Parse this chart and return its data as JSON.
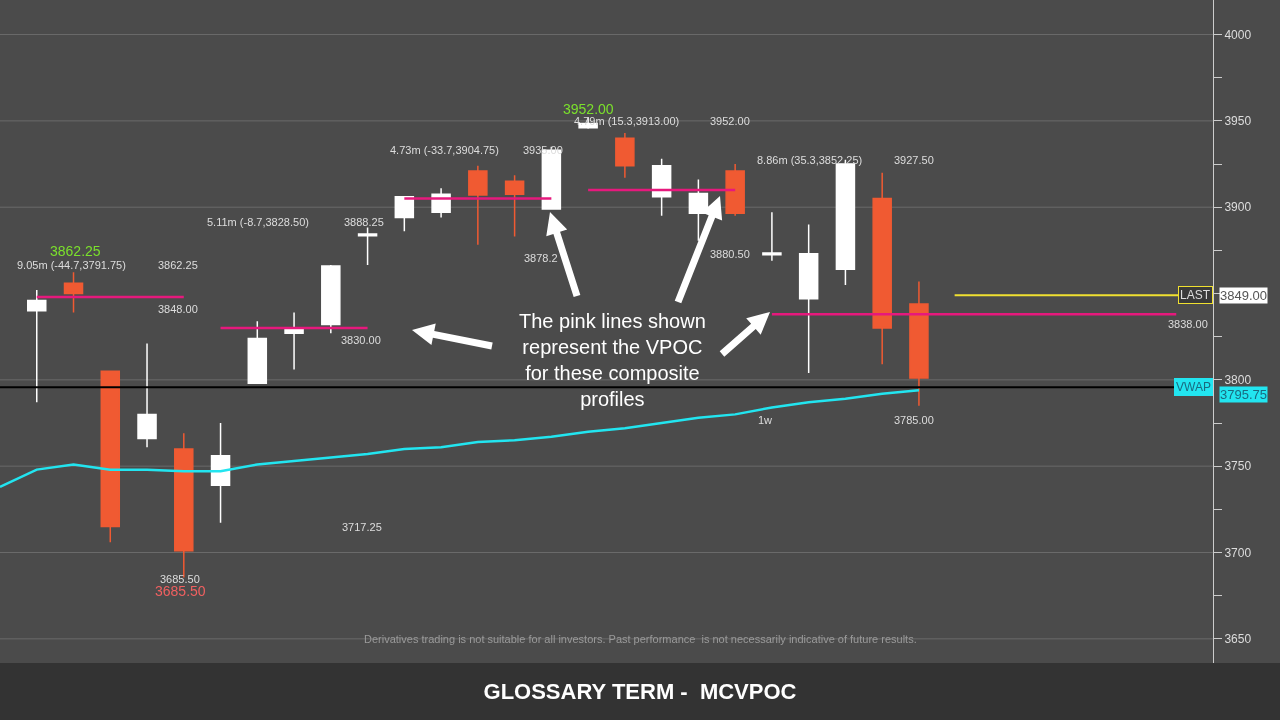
{
  "chart_data": {
    "type": "candlestick",
    "title": "GLOSSARY TERM -  MCVPOC",
    "categories": [
      null,
      null,
      null,
      null,
      null,
      null,
      null,
      null,
      null,
      null,
      null,
      null,
      null,
      null,
      null,
      null,
      null,
      null,
      null,
      null,
      null,
      null,
      null,
      null,
      null,
      null,
      null,
      null,
      null,
      null,
      null,
      null,
      null
    ],
    "ohlc": [
      null,
      [
        3840,
        3852,
        3787,
        3846
      ],
      [
        3856,
        3862.25,
        3839,
        3850
      ],
      [
        3805,
        3805,
        3706,
        3715
      ],
      [
        3766,
        3821,
        3761,
        3780
      ],
      [
        3760,
        3769,
        3685.5,
        3701
      ],
      [
        3739,
        3775,
        3717.25,
        3756
      ],
      [
        3798,
        3834,
        3798,
        3824
      ],
      [
        3827,
        3839,
        3806,
        3830
      ],
      [
        3832,
        3866.5,
        3827,
        3866
      ],
      [
        3883.5,
        3888.25,
        3866.5,
        3884.5
      ],
      [
        3894,
        3906,
        3886,
        3906
      ],
      [
        3897,
        3911,
        3894,
        3907.5
      ],
      [
        3921,
        3924,
        3878.25,
        3907
      ],
      [
        3915,
        3918.5,
        3883,
        3907.5
      ],
      [
        3899,
        3935,
        3899,
        3933
      ],
      [
        3946,
        3952,
        3945.5,
        3948.5
      ],
      [
        3940,
        3943,
        3917,
        3924
      ],
      [
        3906,
        3928,
        3895,
        3924
      ],
      [
        3896.5,
        3916,
        3880.5,
        3908
      ],
      [
        3921,
        3925,
        3895,
        3896.5
      ],
      [
        3872.5,
        3897,
        3869,
        3873.5
      ],
      [
        3847,
        3890,
        3804,
        3873
      ],
      [
        3864,
        3927.5,
        3855,
        3925
      ],
      [
        3905,
        3920,
        3809,
        3830
      ],
      [
        3844,
        3857,
        3785,
        3801
      ],
      null,
      null,
      null,
      null,
      null,
      null,
      null
    ],
    "colors": [
      null,
      "#ffffff",
      "#f05a32",
      "#f05a32",
      "#ffffff",
      "#f05a32",
      "#ffffff",
      "#ffffff",
      "#ffffff",
      "#ffffff",
      "#ffffff",
      "#ffffff",
      "#ffffff",
      "#f05a32",
      "#f05a32",
      "#ffffff",
      "#ffffff",
      "#f05a32",
      "#ffffff",
      "#ffffff",
      "#f05a32",
      "#ffffff",
      "#ffffff",
      "#ffffff",
      "#f05a32",
      "#f05a32",
      null,
      null,
      null,
      null,
      null,
      null,
      null
    ],
    "series": [
      {
        "type": "line",
        "color": "#e6197d",
        "values": [
          null,
          3848,
          3848,
          3848,
          3848,
          3848,
          null,
          null,
          null,
          null,
          null,
          null,
          null,
          null,
          null,
          null,
          null,
          null,
          null,
          null,
          null,
          null,
          null,
          null,
          null,
          null,
          null,
          null,
          null,
          null,
          null,
          null,
          null
        ]
      },
      {
        "type": "line",
        "color": "#e6197d",
        "values": [
          null,
          null,
          null,
          null,
          null,
          null,
          3830,
          3830,
          3830,
          3830,
          3830,
          null,
          null,
          null,
          null,
          null,
          null,
          null,
          null,
          null,
          null,
          null,
          null,
          null,
          null,
          null,
          null,
          null,
          null,
          null,
          null,
          null,
          null
        ]
      },
      {
        "type": "line",
        "color": "#e6197d",
        "values": [
          null,
          null,
          null,
          null,
          null,
          null,
          null,
          null,
          null,
          null,
          null,
          3905,
          3905,
          3905,
          3905,
          3905,
          null,
          null,
          null,
          null,
          null,
          null,
          null,
          null,
          null,
          null,
          null,
          null,
          null,
          null,
          null,
          null,
          null
        ]
      },
      {
        "type": "line",
        "color": "#e6197d",
        "values": [
          null,
          null,
          null,
          null,
          null,
          null,
          null,
          null,
          null,
          null,
          null,
          null,
          null,
          null,
          null,
          null,
          3910,
          3910,
          3910,
          3910,
          3910,
          null,
          null,
          null,
          null,
          null,
          null,
          null,
          null,
          null,
          null,
          null,
          null
        ]
      },
      {
        "type": "line",
        "color": "#e6197d",
        "values": [
          null,
          null,
          null,
          null,
          null,
          null,
          null,
          null,
          null,
          null,
          null,
          null,
          null,
          null,
          null,
          null,
          null,
          null,
          null,
          null,
          null,
          3838,
          3838,
          3838,
          3838,
          3838,
          3838,
          3838,
          3838,
          3838,
          3838,
          3838,
          3838
        ]
      },
      {
        "type": "line",
        "color": "#22e5f0",
        "values": [
          3738,
          3748,
          3751,
          3748,
          3748,
          3747,
          3747,
          3751,
          3753,
          3755,
          3757,
          3760,
          3761,
          3764,
          3765,
          3767,
          3770,
          3772,
          3775,
          3778,
          3780,
          3784,
          3787,
          3789,
          3792,
          3794,
          null,
          null,
          null,
          null,
          null,
          null,
          null
        ]
      }
    ],
    "ylim": [
      3636,
      4020
    ],
    "yticks": [
      3650,
      {
        "value": 3675,
        "label": null
      },
      3700,
      {
        "value": 3725,
        "label": null
      },
      3750,
      {
        "value": 3775,
        "label": null
      },
      3800,
      {
        "value": 3825,
        "label": null
      },
      {
        "value": 3850,
        "label": null
      },
      {
        "value": 3875,
        "label": null
      },
      3900,
      {
        "value": 3925,
        "label": null
      },
      3950,
      {
        "value": 3975,
        "label": null
      },
      4000
    ],
    "grid": "y",
    "tick_labels": "y",
    "ref_lines": [
      {
        "axis": "y",
        "value": 3849,
        "label": "LAST",
        "color": "#f0e030"
      },
      {
        "axis": "y",
        "value": 3795.75,
        "label": "VWAP",
        "color": "#000000"
      }
    ],
    "annotations": [
      "9.05m (-44.7,3791.75)",
      "3862.25",
      "3862.25",
      "3848.00",
      "3685.50",
      "3685.50",
      "5.11m (-8.7,3828.50)",
      "3888.25",
      "3830.00",
      "3717.25",
      "4.73m (-33.7,3904.75)",
      "3935.00",
      "3878.2",
      "4.79m (15.3,3913.00)",
      "3952.00",
      "3952.00",
      "3880.50",
      "8.86m (35.3,3852.25)",
      "3927.50",
      "3838.00",
      "3785.00",
      "1w",
      "The pink lines shown\nrepresent the VPOC\nfor these composite\nprofiles",
      "3849.00",
      "3795.75",
      "Derivatives trading is not suitable for all investors. Past performance  is not necessarily indicative of future results."
    ]
  }
}
